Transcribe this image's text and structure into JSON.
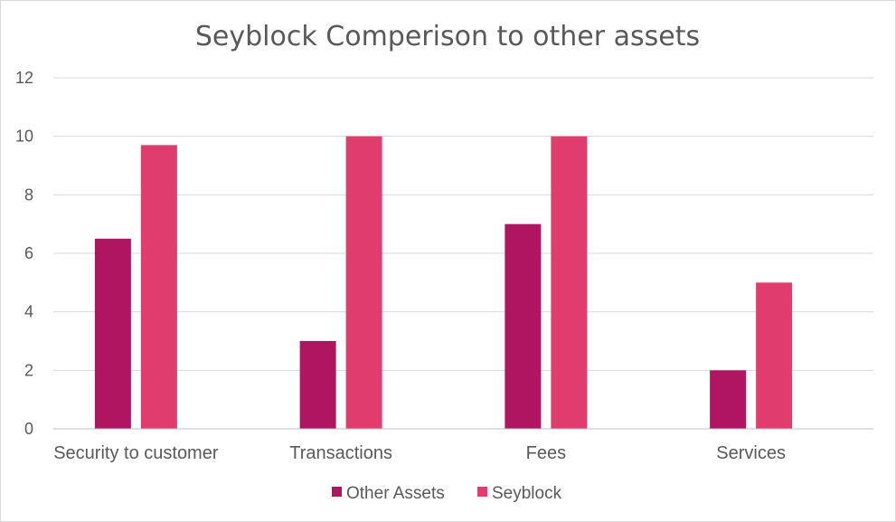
{
  "chart_data": {
    "type": "bar",
    "title": "Seyblock Comperison to other assets",
    "categories": [
      "Security to customer",
      "Transactions",
      "Fees",
      "Services"
    ],
    "series": [
      {
        "name": "Other Assets",
        "values": [
          6.5,
          3,
          7,
          2
        ],
        "color": "#b01561"
      },
      {
        "name": "Seyblock",
        "values": [
          9.7,
          10,
          10,
          5
        ],
        "color": "#e03c6e"
      }
    ],
    "ylim": [
      0,
      12
    ],
    "yticks": [
      "0",
      "2",
      "4",
      "6",
      "8",
      "10",
      "12"
    ],
    "xlabel": "",
    "ylabel": "",
    "grid": true,
    "legend": "bottom"
  }
}
